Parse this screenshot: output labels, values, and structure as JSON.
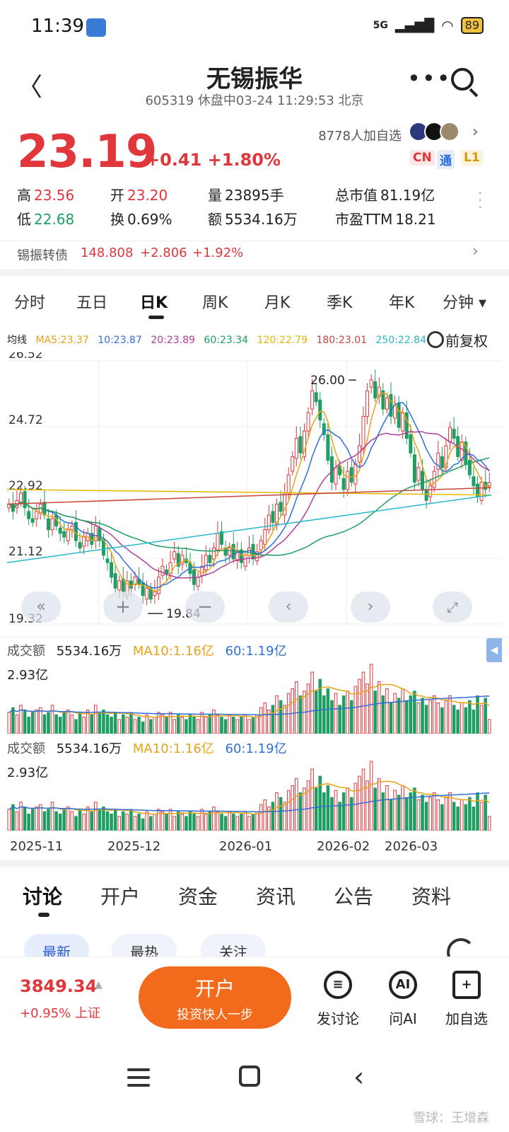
{
  "status_bar": {
    "time": "11:39",
    "network": "5G",
    "battery": "89"
  },
  "header": {
    "title": "无锡振华",
    "subtitle": "605319 休盘中03-24 11:29:53 北京"
  },
  "quote": {
    "price": "23.19",
    "change": "+0.41 +1.80%",
    "watchers": "8778人加自选",
    "badges": [
      "CN",
      "通",
      "L1"
    ],
    "stats": {
      "high_label": "高",
      "high": "23.56",
      "open_label": "开",
      "open": "23.20",
      "volume_label": "量",
      "volume": "23895手",
      "mktcap_label": "总市值",
      "mktcap": "81.19亿",
      "low_label": "低",
      "low": "22.68",
      "turnover_label": "换",
      "turnover": "0.69%",
      "amount_label": "额",
      "amount": "5534.16万",
      "pe_label": "市盈TTM",
      "pe": "18.21"
    },
    "convertible": {
      "name": "锡振转债",
      "price": "148.808",
      "change": "+2.806",
      "pct": "+1.92%"
    }
  },
  "period_tabs": [
    "分时",
    "五日",
    "日K",
    "周K",
    "月K",
    "季K",
    "年K",
    "分钟 ▾"
  ],
  "active_period": "日K",
  "ma": {
    "label": "均线",
    "items": [
      {
        "text": "MA5:23.37",
        "color": "#e8a317"
      },
      {
        "text": "10:23.87",
        "color": "#2f6fd6"
      },
      {
        "text": "20:23.89",
        "color": "#b03c9c"
      },
      {
        "text": "60:23.34",
        "color": "#1a9e62"
      },
      {
        "text": "120:22.79",
        "color": "#e6b800"
      },
      {
        "text": "180:23.01",
        "color": "#c8453b"
      },
      {
        "text": "250:22.84",
        "color": "#26b8c8"
      }
    ],
    "adjust": "前复权"
  },
  "chart_data": {
    "type": "candlestick",
    "y_ticks": [
      "26.52",
      "24.72",
      "22.92",
      "21.12",
      "19.32"
    ],
    "ylim": [
      19.32,
      26.52
    ],
    "annotations": [
      {
        "text": "26.00",
        "value": 26.0
      },
      {
        "text": "19.84",
        "value": 19.84
      }
    ],
    "x_labels": [
      "2025-11",
      "2025-12",
      "2026-01",
      "2026-02",
      "2026-03"
    ],
    "closes": [
      22.6,
      22.4,
      22.7,
      22.9,
      22.5,
      22.2,
      22.1,
      22.4,
      22.6,
      22.3,
      21.9,
      22.2,
      22.0,
      21.8,
      21.7,
      21.9,
      22.0,
      21.6,
      21.4,
      21.7,
      21.8,
      21.5,
      22.0,
      21.6,
      21.2,
      21.0,
      20.6,
      20.3,
      20.5,
      20.2,
      20.5,
      20.3,
      20.6,
      20.4,
      20.1,
      20.3,
      20.0,
      20.2,
      20.6,
      20.9,
      20.7,
      21.0,
      21.3,
      20.9,
      21.2,
      21.0,
      20.7,
      20.4,
      20.6,
      20.9,
      21.2,
      21.0,
      21.4,
      21.8,
      21.5,
      21.2,
      21.4,
      21.1,
      21.3,
      21.0,
      21.2,
      21.4,
      21.1,
      21.3,
      21.6,
      21.9,
      22.3,
      22.1,
      22.6,
      22.4,
      22.9,
      23.4,
      23.9,
      24.4,
      24.0,
      24.6,
      25.1,
      25.7,
      25.4,
      24.9,
      24.5,
      23.8,
      23.2,
      23.6,
      23.4,
      23.0,
      23.5,
      23.2,
      23.7,
      24.2,
      25.0,
      25.7,
      26.0,
      25.5,
      25.8,
      25.2,
      25.5,
      25.0,
      25.3,
      24.7,
      25.1,
      24.4,
      24.0,
      23.2,
      23.6,
      23.0,
      22.7,
      23.1,
      23.5,
      24.0,
      23.6,
      24.2,
      24.7,
      24.4,
      23.9,
      24.3,
      23.7,
      23.4,
      23.1,
      22.8,
      23.2,
      23.0,
      23.19
    ],
    "volume": {
      "label": "成交额",
      "amount": "5534.16万",
      "ma10": "MA10:1.16亿",
      "ma60": "60:1.19亿",
      "max_label": "2.93亿",
      "values": [
        0.9,
        1.1,
        0.8,
        1.2,
        1.0,
        0.7,
        0.9,
        1.0,
        1.1,
        0.8,
        0.9,
        1.2,
        0.8,
        0.7,
        0.9,
        1.0,
        0.8,
        0.6,
        0.9,
        0.7,
        1.0,
        0.8,
        1.2,
        0.9,
        1.0,
        0.8,
        0.7,
        0.9,
        0.6,
        0.8,
        0.7,
        0.9,
        0.6,
        0.7,
        0.5,
        0.8,
        0.6,
        0.7,
        0.9,
        0.8,
        0.7,
        0.9,
        0.6,
        0.8,
        0.7,
        0.6,
        0.8,
        0.7,
        0.6,
        0.9,
        0.7,
        0.8,
        1.0,
        0.8,
        0.7,
        0.6,
        0.8,
        0.7,
        0.6,
        0.7,
        0.8,
        0.6,
        0.7,
        0.8,
        1.1,
        1.3,
        1.0,
        1.2,
        1.6,
        1.4,
        1.2,
        1.7,
        1.9,
        2.2,
        1.6,
        1.8,
        2.1,
        2.6,
        1.8,
        2.3,
        1.6,
        1.9,
        1.4,
        1.7,
        1.2,
        1.6,
        1.8,
        1.4,
        2.0,
        2.3,
        2.6,
        2.1,
        2.93,
        1.8,
        2.2,
        1.6,
        1.9,
        1.3,
        1.7,
        1.5,
        1.9,
        1.4,
        1.6,
        1.8,
        1.3,
        1.5,
        1.2,
        1.4,
        1.6,
        1.3,
        1.1,
        1.4,
        1.6,
        1.2,
        1.0,
        1.3,
        1.1,
        1.4,
        1.0,
        1.6,
        1.2,
        1.5,
        0.6
      ]
    }
  },
  "bottom_tabs": [
    "讨论",
    "开户",
    "资金",
    "资讯",
    "公告",
    "资料"
  ],
  "active_bottom_tab": "讨论",
  "filter_pills": [
    "最新",
    "最热",
    "关注"
  ],
  "index": {
    "value": "3849.34",
    "sub": "+0.95% 上证"
  },
  "open_account": {
    "title": "开户",
    "subtitle": "投资快人一步"
  },
  "actions": [
    {
      "label": "发讨论",
      "icon": "discuss-icon",
      "glyph": "≡"
    },
    {
      "label": "问AI",
      "icon": "ai-icon",
      "glyph": "AI"
    },
    {
      "label": "加自选",
      "icon": "add-watchlist-icon",
      "glyph": "+"
    }
  ],
  "watermark": "雪球：王增森",
  "colors": {
    "up": "#e0363c",
    "down": "#1e9e62",
    "accent": "#f26a1b"
  }
}
